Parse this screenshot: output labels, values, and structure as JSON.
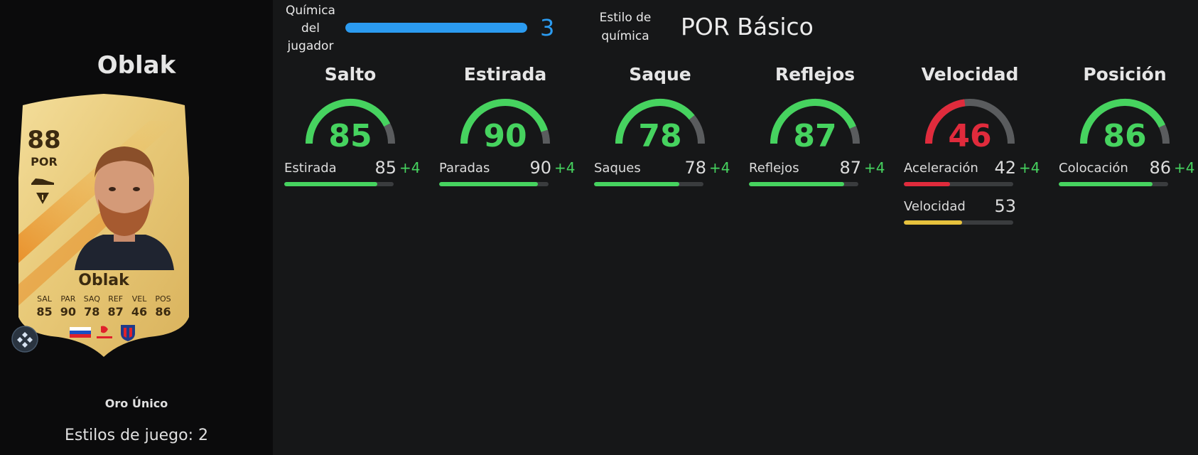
{
  "player": {
    "name": "Oblak",
    "rating": "88",
    "position": "POR",
    "card_type": "Oro Único",
    "playstyles_text": "Estilos de juego: 2",
    "card_stats": [
      {
        "label": "SAL",
        "value": "85"
      },
      {
        "label": "PAR",
        "value": "90"
      },
      {
        "label": "SAQ",
        "value": "78"
      },
      {
        "label": "REF",
        "value": "87"
      },
      {
        "label": "VEL",
        "value": "46"
      },
      {
        "label": "POS",
        "value": "86"
      }
    ]
  },
  "chemistry": {
    "label": "Química del jugador",
    "value": "3",
    "fill_fraction": 1.0,
    "style_label": "Estilo de química",
    "style_value": "POR Básico"
  },
  "colors": {
    "green": "#46d35f",
    "red": "#e02b3c",
    "yellow": "#e7c23d",
    "blue": "#2b9bf0",
    "track": "#3a3c3e"
  },
  "stats": [
    {
      "title": "Salto",
      "value": "85",
      "color": "#46d35f",
      "subs": [
        {
          "name": "Estirada",
          "value": "85",
          "bonus": "+4",
          "color": "#46d35f"
        }
      ]
    },
    {
      "title": "Estirada",
      "value": "90",
      "color": "#46d35f",
      "subs": [
        {
          "name": "Paradas",
          "value": "90",
          "bonus": "+4",
          "color": "#46d35f"
        }
      ]
    },
    {
      "title": "Saque",
      "value": "78",
      "color": "#46d35f",
      "subs": [
        {
          "name": "Saques",
          "value": "78",
          "bonus": "+4",
          "color": "#46d35f"
        }
      ]
    },
    {
      "title": "Reflejos",
      "value": "87",
      "color": "#46d35f",
      "subs": [
        {
          "name": "Reflejos",
          "value": "87",
          "bonus": "+4",
          "color": "#46d35f"
        }
      ]
    },
    {
      "title": "Velocidad",
      "value": "46",
      "color": "#e02b3c",
      "subs": [
        {
          "name": "Aceleración",
          "value": "42",
          "bonus": "+4",
          "color": "#e02b3c"
        },
        {
          "name": "Velocidad",
          "value": "53",
          "bonus": "",
          "color": "#e7c23d"
        }
      ]
    },
    {
      "title": "Posición",
      "value": "86",
      "color": "#46d35f",
      "subs": [
        {
          "name": "Colocación",
          "value": "86",
          "bonus": "+4",
          "color": "#46d35f"
        }
      ]
    }
  ]
}
